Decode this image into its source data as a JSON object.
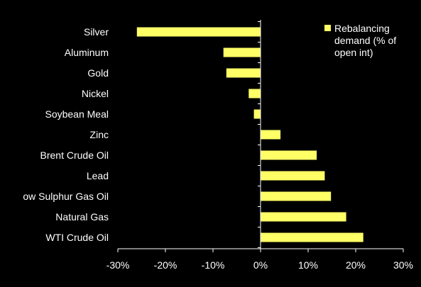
{
  "chart_data": {
    "type": "bar",
    "orientation": "horizontal",
    "categories": [
      "Silver",
      "Aluminum",
      "Gold",
      "Nickel",
      "Soybean Meal",
      "Zinc",
      "Brent Crude Oil",
      "Lead",
      "ow Sulphur Gas Oil",
      "Natural Gas",
      "WTI Crude Oil"
    ],
    "series": [
      {
        "name": "Rebalancing demand (% of open int)",
        "values": [
          -26.0,
          -7.8,
          -7.2,
          -2.5,
          -1.4,
          4.2,
          11.8,
          13.5,
          14.8,
          18.0,
          21.6
        ]
      }
    ],
    "xlim": [
      -30,
      30
    ],
    "xticks": [
      "-30%",
      "-20%",
      "-10%",
      "0%",
      "10%",
      "20%",
      "30%"
    ],
    "grid": false,
    "legend_position": "top-right",
    "legend_lines": [
      "Rebalancing",
      "demand (% of",
      "open int)"
    ],
    "colors": {
      "background": "#000000",
      "bar": "#ffff66",
      "axis": "#ffffff",
      "text": "#ffffff"
    }
  }
}
